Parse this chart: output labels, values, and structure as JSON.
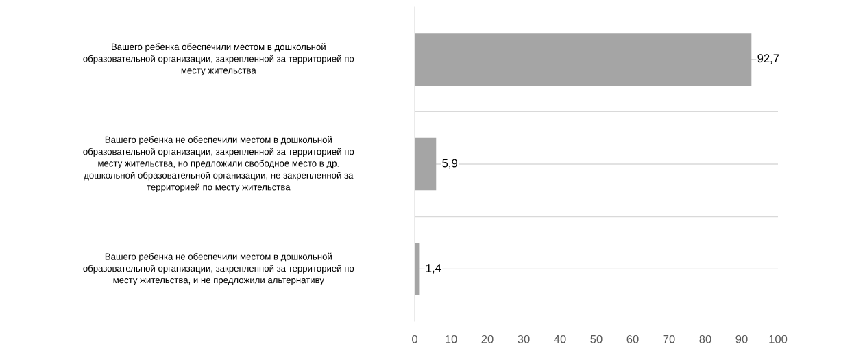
{
  "chart_data": {
    "type": "bar",
    "orientation": "horizontal",
    "categories": [
      "Вашего ребенка обеспечили местом в дошкольной образовательной организации, закрепленной за территорией по месту жительства",
      "Вашего ребенка не обеспечили местом в дошкольной образовательной организации, закрепленной за территорией по месту жительства, но предложили свободное место в др. дошкольной образовательной организации, не закрепленной за территорией по месту жительства",
      "Вашего ребенка не обеспечили местом в дошкольной образовательной организации, закрепленной за территорией по месту жительства, и не предложили альтернативу"
    ],
    "values": [
      92.7,
      5.9,
      1.4
    ],
    "value_labels": [
      "92,7",
      "5,9",
      "1,4"
    ],
    "color": "#a5a5a5",
    "xlim": [
      0,
      100
    ],
    "xticks": [
      0,
      10,
      20,
      30,
      40,
      50,
      60,
      70,
      80,
      90,
      100
    ],
    "grid": "y"
  }
}
